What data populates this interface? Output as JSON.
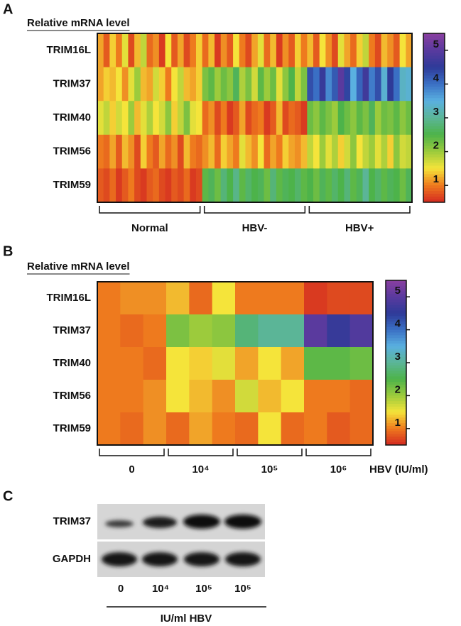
{
  "chart_data": [
    {
      "type": "heatmap",
      "panel": "A",
      "title": "Relative mRNA level",
      "rows": [
        "TRIM16L",
        "TRIM37",
        "TRIM40",
        "TRIM56",
        "TRIM59"
      ],
      "groups": [
        "Normal",
        "HBV-",
        "HBV+"
      ],
      "values": [
        [
          [
            1.2,
            0.8,
            1.4,
            1.0,
            1.6,
            0.7,
            1.3,
            1.8,
            0.9,
            1.1,
            0.6,
            1.5,
            0.8,
            1.2,
            0.7,
            1.0,
            1.4
          ],
          [
            0.9,
            1.3,
            0.6,
            1.1,
            0.8,
            1.5,
            1.0,
            0.7,
            1.2,
            1.6,
            0.9,
            1.3,
            0.6,
            1.1,
            0.8,
            1.4,
            1.0
          ],
          [
            1.3,
            0.8,
            1.5,
            1.1,
            0.7,
            1.6,
            1.2,
            0.9,
            1.4,
            1.8,
            1.0,
            0.7,
            1.3,
            1.1,
            0.8,
            1.5,
            1.2
          ]
        ],
        [
          [
            1.2,
            1.4,
            1.3,
            1.5,
            1.1,
            1.6,
            2.0,
            1.3,
            1.2,
            1.7,
            1.4,
            1.0,
            1.5,
            1.8,
            1.3,
            1.2,
            1.4
          ],
          [
            2.2,
            2.4,
            2.0,
            2.3,
            2.1,
            2.6,
            1.9,
            2.2,
            1.7,
            2.4,
            2.0,
            2.3,
            1.6,
            2.1,
            2.5,
            1.8,
            2.2
          ],
          [
            4.3,
            4.0,
            4.6,
            3.8,
            4.2,
            5.0,
            4.4,
            3.5,
            4.1,
            4.7,
            3.9,
            4.3,
            3.4,
            4.5,
            4.0,
            3.3,
            3.4
          ]
        ],
        [
          [
            1.6,
            1.8,
            1.4,
            1.7,
            1.5,
            2.0,
            1.3,
            1.6,
            1.9,
            1.5,
            1.7,
            2.1,
            1.4,
            1.8,
            2.2,
            1.6,
            1.5
          ],
          [
            0.9,
            1.1,
            0.7,
            1.0,
            0.6,
            0.8,
            1.2,
            0.7,
            0.9,
            1.0,
            0.6,
            0.8,
            1.3,
            0.7,
            0.9,
            0.8,
            0.6
          ],
          [
            2.3,
            2.1,
            2.4,
            2.2,
            2.0,
            2.5,
            2.3,
            2.1,
            2.4,
            2.2,
            2.6,
            2.0,
            2.3,
            2.2,
            2.4,
            2.1,
            2.3
          ]
        ],
        [
          [
            1.0,
            0.9,
            1.2,
            0.8,
            1.3,
            1.1,
            0.7,
            1.4,
            1.0,
            0.8,
            1.2,
            0.9,
            1.1,
            0.7,
            1.3,
            1.0,
            0.9
          ],
          [
            1.1,
            1.3,
            0.9,
            1.4,
            1.2,
            1.0,
            1.6,
            1.3,
            1.1,
            1.5,
            0.9,
            1.2,
            1.0,
            1.4,
            1.2,
            1.1,
            1.3
          ],
          [
            1.8,
            1.5,
            2.0,
            1.6,
            1.9,
            1.4,
            1.7,
            2.1,
            1.5,
            1.8,
            2.0,
            1.6,
            1.9,
            1.4,
            2.1,
            1.7,
            1.8
          ]
        ],
        [
          [
            0.8,
            0.7,
            0.9,
            0.6,
            0.8,
            1.0,
            0.7,
            0.6,
            0.8,
            0.9,
            0.7,
            0.6,
            0.8,
            0.7,
            0.9,
            0.6,
            0.7
          ],
          [
            2.4,
            2.6,
            2.3,
            2.8,
            2.5,
            2.9,
            2.4,
            2.7,
            2.5,
            2.6,
            2.3,
            2.8,
            2.4,
            2.6,
            2.5,
            2.7,
            2.4
          ],
          [
            2.5,
            2.3,
            2.6,
            2.4,
            2.7,
            2.5,
            2.8,
            2.4,
            2.6,
            3.0,
            2.5,
            2.7,
            2.4,
            2.6,
            2.5,
            2.3,
            2.6
          ]
        ]
      ],
      "zlim": [
        0.5,
        5.5
      ],
      "zticks": [
        1,
        2,
        3,
        4,
        5
      ],
      "colors": [
        "#d42a20",
        "#ee7a1e",
        "#f5e43a",
        "#9ccb3c",
        "#4db34a",
        "#5bb597",
        "#5ab0e0",
        "#3a6fc4",
        "#2e3a98",
        "#5a3a9e",
        "#8a3fa0"
      ]
    },
    {
      "type": "heatmap",
      "panel": "B",
      "title": "Relative mRNA level",
      "xlabel": "HBV (IU/ml)",
      "rows": [
        "TRIM16L",
        "TRIM37",
        "TRIM40",
        "TRIM56",
        "TRIM59"
      ],
      "groups": [
        "0",
        "10⁴",
        "10⁵",
        "10⁶"
      ],
      "values": [
        [
          [
            1.0,
            1.1,
            1.1
          ],
          [
            1.3,
            0.9,
            1.5
          ],
          [
            1.0,
            1.0,
            1.0
          ],
          [
            0.6,
            0.7,
            0.7
          ]
        ],
        [
          [
            1.0,
            0.9,
            1.0
          ],
          [
            2.2,
            2.0,
            2.1
          ],
          [
            2.8,
            3.0,
            3.0
          ],
          [
            5.0,
            4.6,
            4.9
          ]
        ],
        [
          [
            1.0,
            1.0,
            0.9
          ],
          [
            1.5,
            1.4,
            1.6
          ],
          [
            1.2,
            1.5,
            1.2
          ],
          [
            2.4,
            2.4,
            2.3
          ]
        ],
        [
          [
            1.0,
            1.0,
            1.1
          ],
          [
            1.5,
            1.3,
            1.1
          ],
          [
            1.7,
            1.3,
            1.5
          ],
          [
            1.0,
            1.0,
            0.9
          ]
        ],
        [
          [
            1.0,
            0.9,
            1.1
          ],
          [
            0.9,
            1.2,
            1.0
          ],
          [
            0.9,
            1.5,
            0.9
          ],
          [
            1.0,
            0.8,
            0.9
          ]
        ]
      ],
      "zlim": [
        0.5,
        5.5
      ],
      "zticks": [
        1,
        2,
        3,
        4,
        5
      ],
      "colors": [
        "#d42a20",
        "#ee7a1e",
        "#f5e43a",
        "#9ccb3c",
        "#4db34a",
        "#5bb597",
        "#5ab0e0",
        "#3a6fc4",
        "#2e3a98",
        "#5a3a9e",
        "#8a3fa0"
      ]
    }
  ],
  "blot": {
    "panel": "C",
    "rows": [
      "TRIM37",
      "GAPDH"
    ],
    "lanes": [
      "0",
      "10⁴",
      "10⁵",
      "10⁵"
    ],
    "xlabel": "IU/ml HBV"
  }
}
